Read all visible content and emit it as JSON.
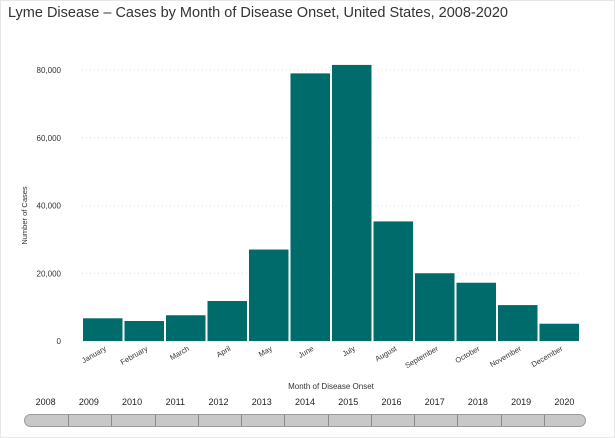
{
  "title": "Lyme Disease – Cases by Month of Disease Onset, United States, 2008-2020",
  "colors": {
    "bar": "#006b6b",
    "grid": "#e0e0e0",
    "text": "#333333"
  },
  "slider": {
    "years": [
      "2008",
      "2009",
      "2010",
      "2011",
      "2012",
      "2013",
      "2014",
      "2015",
      "2016",
      "2017",
      "2018",
      "2019",
      "2020"
    ]
  },
  "chart_data": {
    "type": "bar",
    "categories": [
      "January",
      "February",
      "March",
      "April",
      "May",
      "June",
      "July",
      "August",
      "September",
      "October",
      "November",
      "December"
    ],
    "values": [
      6700,
      5900,
      7600,
      11800,
      27000,
      79000,
      81500,
      35300,
      20000,
      17200,
      10600,
      5100
    ],
    "y_ticks": [
      0,
      20000,
      40000,
      60000,
      80000
    ],
    "y_tick_labels": [
      "0",
      "20,000",
      "40,000",
      "60,000",
      "80,000"
    ],
    "xlabel": "Month of Disease Onset",
    "ylabel": "Number of Cases",
    "ylim": [
      0,
      80000
    ],
    "grid": true
  }
}
